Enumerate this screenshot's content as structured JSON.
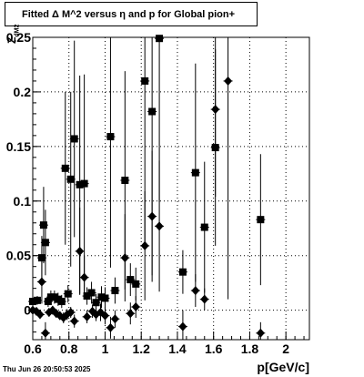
{
  "title": "Fitted Δ M^2 versus η and p for Global pion+",
  "timestamp": "Thu Jun 26 20:50:53 2025",
  "chart_data": {
    "type": "scatter",
    "title": "Fitted Δ M^2 versus η and p for Global pion+",
    "xlabel": "p[GeV/c]",
    "ylabel": "Z",
    "ylabel_sub": "dM2",
    "xlim": [
      0.6,
      2.13
    ],
    "ylim": [
      -0.027,
      0.25
    ],
    "grid": true,
    "x_ticks": [
      0.6,
      0.8,
      1.0,
      1.2,
      1.4,
      1.6,
      1.8,
      2.0
    ],
    "x_tick_labels": [
      "0.6",
      "0.8",
      "1",
      "1.2",
      "1.4",
      "1.6",
      "1.8",
      "2"
    ],
    "y_ticks": [
      0,
      0.05,
      0.1,
      0.15,
      0.2,
      0.25
    ],
    "y_tick_labels": [
      "0",
      "0.05",
      "0.1",
      "0.15",
      "0.2",
      "0.25"
    ],
    "series": [
      {
        "marker": "square",
        "points": [
          {
            "x": 0.6,
            "y": 0.008,
            "err": 0.004
          },
          {
            "x": 0.625,
            "y": 0.009,
            "err": 0.004
          },
          {
            "x": 0.65,
            "y": 0.048,
            "err": 0.02
          },
          {
            "x": 0.66,
            "y": 0.078,
            "err": 0.035
          },
          {
            "x": 0.67,
            "y": 0.062,
            "err": 0.03
          },
          {
            "x": 0.685,
            "y": 0.008,
            "err": 0.005
          },
          {
            "x": 0.7,
            "y": 0.012,
            "err": 0.006
          },
          {
            "x": 0.72,
            "y": 0.012,
            "err": 0.006
          },
          {
            "x": 0.74,
            "y": 0.01,
            "err": 0.006
          },
          {
            "x": 0.76,
            "y": 0.008,
            "err": 0.006
          },
          {
            "x": 0.78,
            "y": 0.13,
            "err": 0.07
          },
          {
            "x": 0.795,
            "y": 0.015,
            "err": 0.008
          },
          {
            "x": 0.81,
            "y": 0.12,
            "err": 0.08
          },
          {
            "x": 0.83,
            "y": 0.157,
            "err": 0.09
          },
          {
            "x": 0.86,
            "y": 0.115,
            "err": 0.1
          },
          {
            "x": 0.885,
            "y": 0.116,
            "err": 0.1
          },
          {
            "x": 0.9,
            "y": 0.013,
            "err": 0.008
          },
          {
            "x": 0.925,
            "y": 0.016,
            "err": 0.01
          },
          {
            "x": 0.95,
            "y": 0.007,
            "err": 0.008
          },
          {
            "x": 0.98,
            "y": 0.012,
            "err": 0.01
          },
          {
            "x": 1.0,
            "y": 0.011,
            "err": 0.01
          },
          {
            "x": 1.03,
            "y": 0.159,
            "err": 0.12
          },
          {
            "x": 1.055,
            "y": 0.018,
            "err": 0.012
          },
          {
            "x": 1.11,
            "y": 0.119,
            "err": 0.1
          },
          {
            "x": 1.14,
            "y": 0.028,
            "err": 0.015
          },
          {
            "x": 1.17,
            "y": 0.024,
            "err": 0.015
          },
          {
            "x": 1.22,
            "y": 0.21,
            "err": 0.15
          },
          {
            "x": 1.26,
            "y": 0.182,
            "err": 0.15
          },
          {
            "x": 1.3,
            "y": 0.249,
            "err": 0.15
          },
          {
            "x": 1.43,
            "y": 0.035,
            "err": 0.02
          },
          {
            "x": 1.5,
            "y": 0.126,
            "err": 0.1
          },
          {
            "x": 1.55,
            "y": 0.076,
            "err": 0.06
          },
          {
            "x": 1.61,
            "y": 0.149,
            "err": 0.09
          },
          {
            "x": 1.86,
            "y": 0.083,
            "err": 0.06
          }
        ]
      },
      {
        "marker": "diamond",
        "points": [
          {
            "x": 0.6,
            "y": 0.0,
            "err": 0.003
          },
          {
            "x": 0.62,
            "y": -0.001,
            "err": 0.003
          },
          {
            "x": 0.64,
            "y": -0.004,
            "err": 0.004
          },
          {
            "x": 0.65,
            "y": 0.026,
            "err": 0.02
          },
          {
            "x": 0.67,
            "y": -0.021,
            "err": 0.01
          },
          {
            "x": 0.69,
            "y": -0.002,
            "err": 0.004
          },
          {
            "x": 0.71,
            "y": 0.0,
            "err": 0.004
          },
          {
            "x": 0.73,
            "y": -0.003,
            "err": 0.004
          },
          {
            "x": 0.75,
            "y": -0.005,
            "err": 0.004
          },
          {
            "x": 0.77,
            "y": -0.007,
            "err": 0.005
          },
          {
            "x": 0.79,
            "y": -0.004,
            "err": 0.005
          },
          {
            "x": 0.81,
            "y": -0.002,
            "err": 0.005
          },
          {
            "x": 0.83,
            "y": -0.01,
            "err": 0.006
          },
          {
            "x": 0.86,
            "y": 0.054,
            "err": 0.04
          },
          {
            "x": 0.885,
            "y": 0.03,
            "err": 0.02
          },
          {
            "x": 0.9,
            "y": -0.006,
            "err": 0.006
          },
          {
            "x": 0.93,
            "y": -0.001,
            "err": 0.006
          },
          {
            "x": 0.95,
            "y": -0.004,
            "err": 0.006
          },
          {
            "x": 0.975,
            "y": -0.002,
            "err": 0.008
          },
          {
            "x": 1.0,
            "y": -0.005,
            "err": 0.008
          },
          {
            "x": 1.03,
            "y": -0.016,
            "err": 0.01
          },
          {
            "x": 1.055,
            "y": -0.008,
            "err": 0.008
          },
          {
            "x": 1.11,
            "y": 0.048,
            "err": 0.04
          },
          {
            "x": 1.14,
            "y": -0.003,
            "err": 0.01
          },
          {
            "x": 1.17,
            "y": 0.003,
            "err": 0.01
          },
          {
            "x": 1.22,
            "y": 0.059,
            "err": 0.05
          },
          {
            "x": 1.26,
            "y": 0.086,
            "err": 0.06
          },
          {
            "x": 1.3,
            "y": 0.077,
            "err": 0.06
          },
          {
            "x": 1.43,
            "y": -0.015,
            "err": 0.015
          },
          {
            "x": 1.5,
            "y": 0.018,
            "err": 0.015
          },
          {
            "x": 1.55,
            "y": 0.01,
            "err": 0.01
          },
          {
            "x": 1.61,
            "y": 0.184,
            "err": 0.08
          },
          {
            "x": 1.68,
            "y": 0.21,
            "err": 0.2
          },
          {
            "x": 1.86,
            "y": -0.021,
            "err": 0.01
          }
        ]
      }
    ]
  }
}
